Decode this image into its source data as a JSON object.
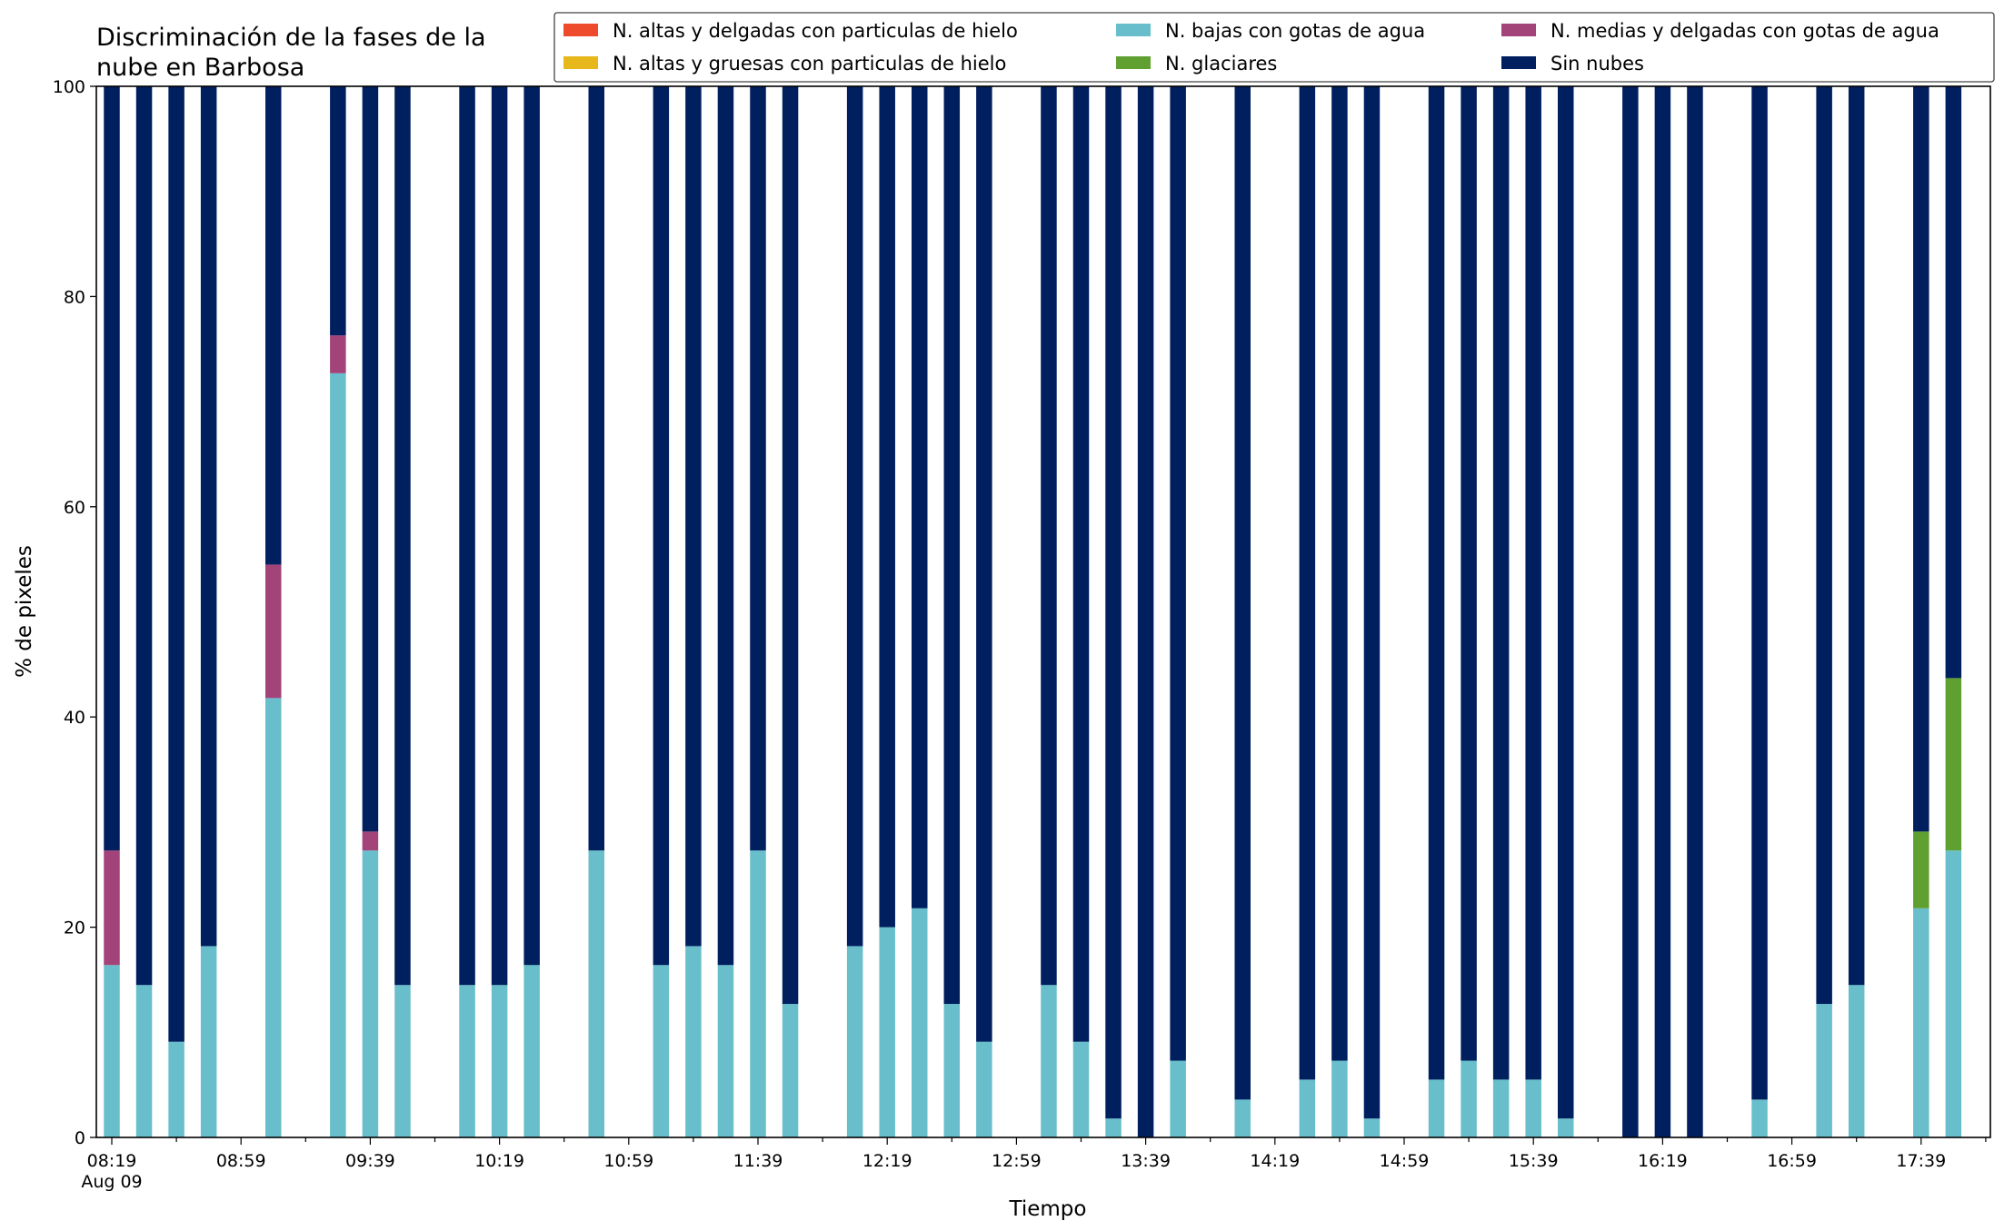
{
  "chart_data": {
    "type": "bar",
    "stacked": true,
    "title_lines": [
      "Discriminación de la fases de la",
      "nube en Barbosa"
    ],
    "xlabel": "Tiempo",
    "ylabel": "% de pixeles",
    "ylim": [
      0,
      100
    ],
    "yticks": [
      0,
      20,
      40,
      60,
      80,
      100
    ],
    "grid": false,
    "legend_position": "top-right",
    "start_time": "08:19",
    "step_minutes": 10,
    "slot_count": 60,
    "major_ticks": [
      {
        "slot": 0,
        "label": "08:19",
        "sublabel": "Aug 09"
      },
      {
        "slot": 4,
        "label": "08:59"
      },
      {
        "slot": 8,
        "label": "09:39"
      },
      {
        "slot": 12,
        "label": "10:19"
      },
      {
        "slot": 16,
        "label": "10:59"
      },
      {
        "slot": 20,
        "label": "11:39"
      },
      {
        "slot": 24,
        "label": "12:19"
      },
      {
        "slot": 28,
        "label": "12:59"
      },
      {
        "slot": 32,
        "label": "13:39"
      },
      {
        "slot": 36,
        "label": "14:19"
      },
      {
        "slot": 40,
        "label": "14:59"
      },
      {
        "slot": 44,
        "label": "15:39"
      },
      {
        "slot": 48,
        "label": "16:19"
      },
      {
        "slot": 52,
        "label": "16:59"
      },
      {
        "slot": 56,
        "label": "17:39"
      }
    ],
    "series": [
      {
        "key": "alt_delg_hielo",
        "name": "N. altas y delgadas con particulas de hielo",
        "color": "#ee4a2c"
      },
      {
        "key": "alt_grue_hielo",
        "name": "N. altas y gruesas con particulas de hielo",
        "color": "#e6b81c"
      },
      {
        "key": "bajas_agua",
        "name": "N. bajas con gotas de agua",
        "color": "#68bfcb"
      },
      {
        "key": "glaciares",
        "name": "N. glaciares",
        "color": "#60a030"
      },
      {
        "key": "medias_agua",
        "name": "N. medias y delgadas con gotas de agua",
        "color": "#a2437a"
      },
      {
        "key": "sin_nubes",
        "name": "Sin nubes",
        "color": "#001f5f"
      }
    ],
    "stack_order": [
      "bajas_agua",
      "glaciares",
      "medias_agua",
      "alt_delg_hielo",
      "alt_grue_hielo",
      "sin_nubes"
    ],
    "legend_order": [
      "alt_delg_hielo",
      "alt_grue_hielo",
      "bajas_agua",
      "glaciares",
      "medias_agua",
      "sin_nubes"
    ],
    "bars": [
      {
        "slot": 0,
        "time": "08:19",
        "bajas_agua": 16.4,
        "medias_agua": 10.9,
        "sin_nubes": 72.7
      },
      {
        "slot": 1,
        "time": "08:29",
        "bajas_agua": 14.5,
        "sin_nubes": 85.5
      },
      {
        "slot": 2,
        "time": "08:39",
        "bajas_agua": 9.1,
        "sin_nubes": 90.9
      },
      {
        "slot": 3,
        "time": "08:49",
        "bajas_agua": 18.2,
        "sin_nubes": 81.8
      },
      {
        "slot": 5,
        "time": "09:09",
        "bajas_agua": 41.8,
        "medias_agua": 12.7,
        "sin_nubes": 45.5
      },
      {
        "slot": 7,
        "time": "09:29",
        "bajas_agua": 72.7,
        "medias_agua": 3.6,
        "sin_nubes": 23.7
      },
      {
        "slot": 8,
        "time": "09:39",
        "bajas_agua": 27.3,
        "medias_agua": 1.8,
        "sin_nubes": 70.9
      },
      {
        "slot": 9,
        "time": "09:49",
        "bajas_agua": 14.5,
        "sin_nubes": 85.5
      },
      {
        "slot": 11,
        "time": "10:09",
        "bajas_agua": 14.5,
        "sin_nubes": 85.5
      },
      {
        "slot": 12,
        "time": "10:19",
        "bajas_agua": 14.5,
        "sin_nubes": 85.5
      },
      {
        "slot": 13,
        "time": "10:29",
        "bajas_agua": 16.4,
        "sin_nubes": 83.6
      },
      {
        "slot": 15,
        "time": "10:49",
        "bajas_agua": 27.3,
        "sin_nubes": 72.7
      },
      {
        "slot": 17,
        "time": "11:09",
        "bajas_agua": 16.4,
        "sin_nubes": 83.6
      },
      {
        "slot": 18,
        "time": "11:19",
        "bajas_agua": 18.2,
        "sin_nubes": 81.8
      },
      {
        "slot": 19,
        "time": "11:29",
        "bajas_agua": 16.4,
        "sin_nubes": 83.6
      },
      {
        "slot": 20,
        "time": "11:39",
        "bajas_agua": 27.3,
        "sin_nubes": 72.7
      },
      {
        "slot": 21,
        "time": "11:49",
        "bajas_agua": 12.7,
        "sin_nubes": 87.3
      },
      {
        "slot": 23,
        "time": "12:09",
        "bajas_agua": 18.2,
        "sin_nubes": 81.8
      },
      {
        "slot": 24,
        "time": "12:19",
        "bajas_agua": 20.0,
        "sin_nubes": 80.0
      },
      {
        "slot": 25,
        "time": "12:29",
        "bajas_agua": 21.8,
        "sin_nubes": 78.2
      },
      {
        "slot": 26,
        "time": "12:39",
        "bajas_agua": 12.7,
        "sin_nubes": 87.3
      },
      {
        "slot": 27,
        "time": "12:49",
        "bajas_agua": 9.1,
        "sin_nubes": 90.9
      },
      {
        "slot": 29,
        "time": "13:09",
        "bajas_agua": 14.5,
        "sin_nubes": 85.5
      },
      {
        "slot": 30,
        "time": "13:19",
        "bajas_agua": 9.1,
        "sin_nubes": 90.9
      },
      {
        "slot": 31,
        "time": "13:29",
        "bajas_agua": 1.8,
        "sin_nubes": 98.2
      },
      {
        "slot": 32,
        "time": "13:39",
        "bajas_agua": 0,
        "sin_nubes": 100
      },
      {
        "slot": 33,
        "time": "13:49",
        "bajas_agua": 7.3,
        "sin_nubes": 92.7
      },
      {
        "slot": 35,
        "time": "14:09",
        "bajas_agua": 3.6,
        "sin_nubes": 96.4
      },
      {
        "slot": 37,
        "time": "14:29",
        "bajas_agua": 5.5,
        "sin_nubes": 94.5
      },
      {
        "slot": 38,
        "time": "14:39",
        "bajas_agua": 7.3,
        "sin_nubes": 92.7
      },
      {
        "slot": 39,
        "time": "14:49",
        "bajas_agua": 1.8,
        "sin_nubes": 98.2
      },
      {
        "slot": 41,
        "time": "15:09",
        "bajas_agua": 5.5,
        "sin_nubes": 94.5
      },
      {
        "slot": 42,
        "time": "15:19",
        "bajas_agua": 7.3,
        "sin_nubes": 92.7
      },
      {
        "slot": 43,
        "time": "15:29",
        "bajas_agua": 5.5,
        "sin_nubes": 94.5
      },
      {
        "slot": 44,
        "time": "15:39",
        "bajas_agua": 5.5,
        "sin_nubes": 94.5
      },
      {
        "slot": 45,
        "time": "15:49",
        "bajas_agua": 1.8,
        "sin_nubes": 98.2
      },
      {
        "slot": 47,
        "time": "16:09",
        "bajas_agua": 0,
        "sin_nubes": 100
      },
      {
        "slot": 48,
        "time": "16:19",
        "bajas_agua": 0,
        "sin_nubes": 100
      },
      {
        "slot": 49,
        "time": "16:29",
        "bajas_agua": 0,
        "sin_nubes": 100
      },
      {
        "slot": 51,
        "time": "16:49",
        "bajas_agua": 3.6,
        "sin_nubes": 96.4
      },
      {
        "slot": 53,
        "time": "17:09",
        "bajas_agua": 12.7,
        "sin_nubes": 87.3
      },
      {
        "slot": 54,
        "time": "17:19",
        "bajas_agua": 14.5,
        "sin_nubes": 85.5
      },
      {
        "slot": 56,
        "time": "17:39",
        "bajas_agua": 21.8,
        "glaciares": 7.3,
        "sin_nubes": 70.9
      },
      {
        "slot": 57,
        "time": "17:49",
        "bajas_agua": 27.3,
        "glaciares": 16.4,
        "sin_nubes": 56.3
      }
    ]
  }
}
